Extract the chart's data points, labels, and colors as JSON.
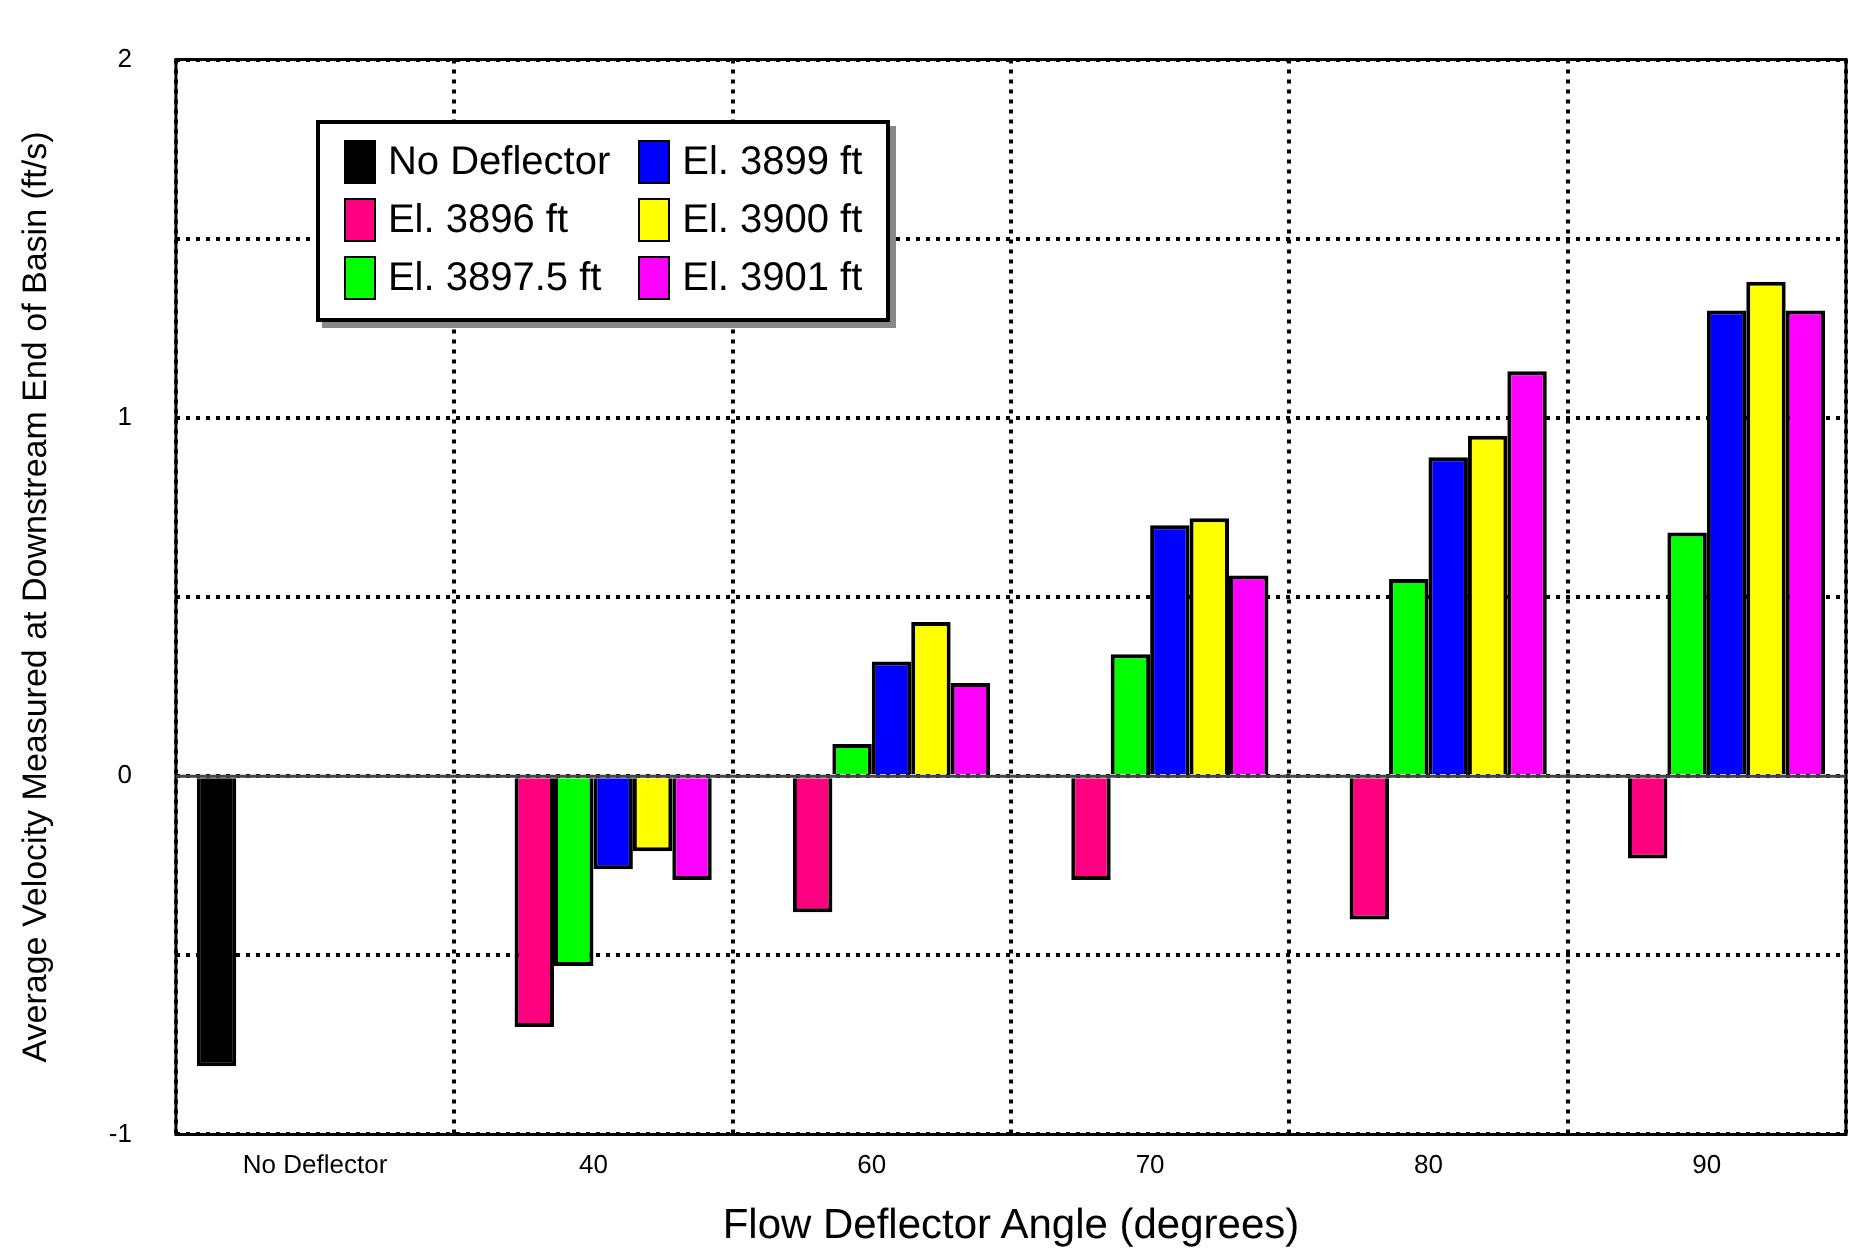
{
  "chart_data": {
    "type": "bar",
    "xlabel": "Flow Deflector Angle (degrees)",
    "ylabel": "Average Velocity Measured at Downstream End of Basin (ft/s)",
    "categories": [
      "No Deflector",
      "40",
      "60",
      "70",
      "80",
      "90"
    ],
    "series": [
      {
        "name": "No Deflector",
        "color": "#000000",
        "values": [
          -0.81,
          null,
          null,
          null,
          null,
          null
        ]
      },
      {
        "name": "El. 3896 ft",
        "color": "#ff0080",
        "values": [
          null,
          -0.7,
          -0.38,
          -0.29,
          -0.4,
          -0.23
        ]
      },
      {
        "name": "El. 3897.5 ft",
        "color": "#00ff00",
        "values": [
          null,
          -0.53,
          0.09,
          0.34,
          0.55,
          0.68
        ]
      },
      {
        "name": "El. 3899 ft",
        "color": "#0000ff",
        "values": [
          null,
          -0.26,
          0.32,
          0.7,
          0.89,
          1.3
        ]
      },
      {
        "name": "El. 3900 ft",
        "color": "#ffff00",
        "values": [
          null,
          -0.21,
          0.43,
          0.72,
          0.95,
          1.38
        ]
      },
      {
        "name": "El. 3901 ft",
        "color": "#ff00ff",
        "values": [
          null,
          -0.29,
          0.26,
          0.56,
          1.13,
          1.3
        ]
      }
    ],
    "ylim": [
      -1,
      2
    ],
    "yticks": [
      -1,
      {
        "value": -0.5,
        "label": null
      },
      0,
      {
        "value": 0.5,
        "label": null
      },
      1,
      {
        "value": 1.5,
        "label": null
      },
      2
    ],
    "grid": true,
    "legend": "top left"
  }
}
